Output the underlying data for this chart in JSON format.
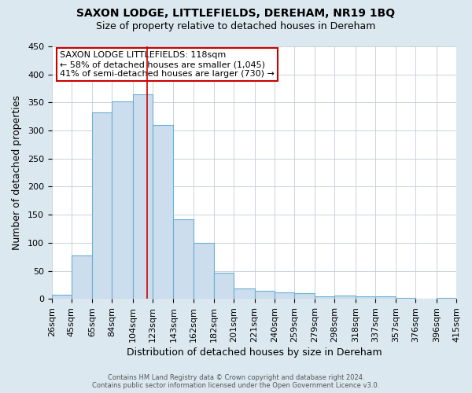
{
  "title": "SAXON LODGE, LITTLEFIELDS, DEREHAM, NR19 1BQ",
  "subtitle": "Size of property relative to detached houses in Dereham",
  "xlabel": "Distribution of detached houses by size in Dereham",
  "ylabel": "Number of detached properties",
  "bin_edges": [
    26,
    45,
    65,
    84,
    104,
    123,
    143,
    162,
    182,
    201,
    221,
    240,
    259,
    279,
    298,
    318,
    337,
    357,
    376,
    396,
    415
  ],
  "bin_labels": [
    "26sqm",
    "45sqm",
    "65sqm",
    "84sqm",
    "104sqm",
    "123sqm",
    "143sqm",
    "162sqm",
    "182sqm",
    "201sqm",
    "221sqm",
    "240sqm",
    "259sqm",
    "279sqm",
    "298sqm",
    "318sqm",
    "337sqm",
    "357sqm",
    "376sqm",
    "396sqm",
    "415sqm"
  ],
  "counts": [
    7,
    77,
    333,
    352,
    365,
    310,
    142,
    100,
    46,
    18,
    14,
    11,
    10,
    5,
    6,
    5,
    5,
    2,
    0,
    2
  ],
  "bar_color": "#ccdded",
  "bar_edge_color": "#6aafd4",
  "property_size": 118,
  "vline_color": "#cc0000",
  "ylim": [
    0,
    450
  ],
  "yticks": [
    0,
    50,
    100,
    150,
    200,
    250,
    300,
    350,
    400,
    450
  ],
  "annotation_line1": "SAXON LODGE LITTLEFIELDS: 118sqm",
  "annotation_line2": "← 58% of detached houses are smaller (1,045)",
  "annotation_line3": "41% of semi-detached houses are larger (730) →",
  "annotation_box_edge_color": "#cc0000",
  "footer_line1": "Contains HM Land Registry data © Crown copyright and database right 2024.",
  "footer_line2": "Contains public sector information licensed under the Open Government Licence v3.0.",
  "background_color": "#dce8f0",
  "plot_background_color": "#ffffff",
  "grid_color": "#c0ccd8",
  "title_fontsize": 10,
  "subtitle_fontsize": 9,
  "xlabel_fontsize": 9,
  "ylabel_fontsize": 9,
  "tick_fontsize": 8,
  "annotation_fontsize": 8,
  "footer_fontsize": 6
}
